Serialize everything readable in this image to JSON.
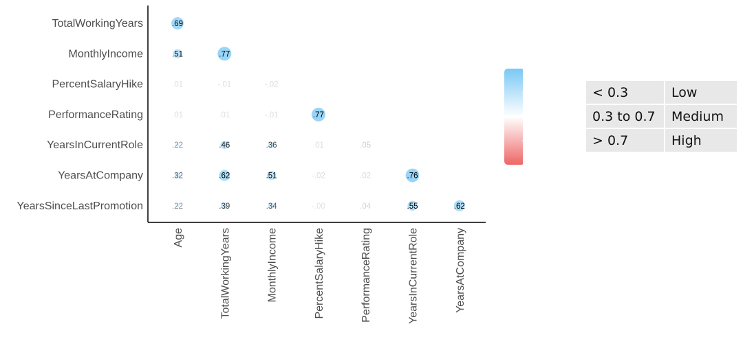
{
  "chart_data": {
    "type": "heatmap",
    "subtype": "correlation-lower-triangle-circles",
    "row_labels": [
      "TotalWorkingYears",
      "MonthlyIncome",
      "PercentSalaryHike",
      "PerformanceRating",
      "YearsInCurrentRole",
      "YearsAtCompany",
      "YearsSinceLastPromotion"
    ],
    "col_labels": [
      "Age",
      "TotalWorkingYears",
      "MonthlyIncome",
      "PercentSalaryHike",
      "PerformanceRating",
      "YearsInCurrentRole",
      "YearsAtCompany"
    ],
    "cells": [
      {
        "row": 0,
        "col": 0,
        "value": 0.69,
        "label": ".69"
      },
      {
        "row": 1,
        "col": 0,
        "value": 0.51,
        "label": ".51"
      },
      {
        "row": 1,
        "col": 1,
        "value": 0.77,
        "label": ".77"
      },
      {
        "row": 2,
        "col": 0,
        "value": 0.01,
        "label": ".01"
      },
      {
        "row": 2,
        "col": 1,
        "value": -0.01,
        "label": "-.01"
      },
      {
        "row": 2,
        "col": 2,
        "value": -0.02,
        "label": "-.02"
      },
      {
        "row": 3,
        "col": 0,
        "value": 0.01,
        "label": ".01"
      },
      {
        "row": 3,
        "col": 1,
        "value": 0.01,
        "label": ".01"
      },
      {
        "row": 3,
        "col": 2,
        "value": -0.01,
        "label": "-.01"
      },
      {
        "row": 3,
        "col": 3,
        "value": 0.77,
        "label": ".77"
      },
      {
        "row": 4,
        "col": 0,
        "value": 0.22,
        "label": ".22"
      },
      {
        "row": 4,
        "col": 1,
        "value": 0.46,
        "label": ".46"
      },
      {
        "row": 4,
        "col": 2,
        "value": 0.36,
        "label": ".36"
      },
      {
        "row": 4,
        "col": 3,
        "value": 0.01,
        "label": ".01"
      },
      {
        "row": 4,
        "col": 4,
        "value": 0.05,
        "label": ".05"
      },
      {
        "row": 5,
        "col": 0,
        "value": 0.32,
        "label": ".32"
      },
      {
        "row": 5,
        "col": 1,
        "value": 0.62,
        "label": ".62"
      },
      {
        "row": 5,
        "col": 2,
        "value": 0.51,
        "label": ".51"
      },
      {
        "row": 5,
        "col": 3,
        "value": -0.02,
        "label": "-.02"
      },
      {
        "row": 5,
        "col": 4,
        "value": 0.02,
        "label": ".02"
      },
      {
        "row": 5,
        "col": 5,
        "value": 0.76,
        "label": ".76"
      },
      {
        "row": 6,
        "col": 0,
        "value": 0.22,
        "label": ".22"
      },
      {
        "row": 6,
        "col": 1,
        "value": 0.39,
        "label": ".39"
      },
      {
        "row": 6,
        "col": 2,
        "value": 0.34,
        "label": ".34"
      },
      {
        "row": 6,
        "col": 3,
        "value": -0.0,
        "label": "-.00"
      },
      {
        "row": 6,
        "col": 4,
        "value": 0.04,
        "label": ".04"
      },
      {
        "row": 6,
        "col": 5,
        "value": 0.55,
        "label": ".55"
      },
      {
        "row": 6,
        "col": 6,
        "value": 0.62,
        "label": ".62"
      }
    ],
    "color_scale": {
      "min": -1.0,
      "max": 1.0,
      "low_color": "#ee6666",
      "mid_color": "#ffffff",
      "high_color": "#7ac8f5"
    },
    "legend": {
      "ticks": [
        "1.0",
        "0.5",
        "0.0",
        "-0.5",
        "-1.0"
      ],
      "tick_values": [
        1.0,
        0.5,
        0.0,
        -0.5,
        -1.0
      ],
      "position": "right"
    },
    "grid": false
  },
  "key_table": [
    {
      "range": "< 0.3",
      "level": "Low"
    },
    {
      "range": "0.3 to 0.7",
      "level": "Medium"
    },
    {
      "range": "> 0.7",
      "level": "High"
    }
  ]
}
